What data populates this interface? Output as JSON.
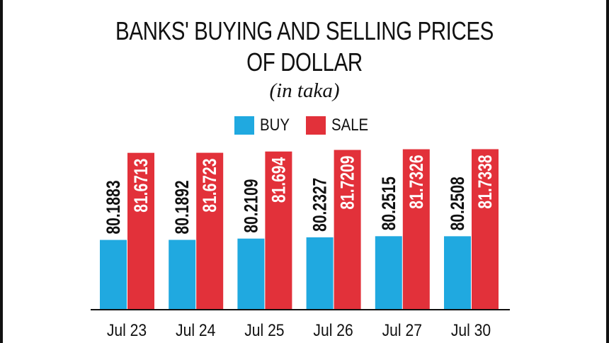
{
  "title_line1": "BANKS' BUYING AND SELLING PRICES",
  "title_line2": "OF DOLLAR",
  "subtitle": "(in taka)",
  "colors": {
    "buy": "#20a9e0",
    "sale": "#e2313a",
    "text": "#111111"
  },
  "legend": [
    {
      "label": "BUY",
      "color": "#20a9e0"
    },
    {
      "label": "SALE",
      "color": "#e2313a"
    }
  ],
  "chart_data": {
    "type": "bar",
    "categories": [
      "Jul 23",
      "Jul 24",
      "Jul 25",
      "Jul 26",
      "Jul 27",
      "Jul 30"
    ],
    "series": [
      {
        "name": "BUY",
        "values": [
          80.1883,
          80.1892,
          80.2109,
          80.2327,
          80.2515,
          80.2508
        ],
        "labels": [
          "80.1883",
          "80.1892",
          "80.2109",
          "80.2327",
          "80.2515",
          "80.2508"
        ]
      },
      {
        "name": "SALE",
        "values": [
          81.6713,
          81.6723,
          81.694,
          81.7209,
          81.7326,
          81.7338
        ],
        "labels": [
          "81.6713",
          "81.6723",
          "81.694",
          "81.7209",
          "81.7326",
          "81.7338"
        ]
      }
    ],
    "ylim": [
      79.0,
      81.8
    ],
    "legend_position": "top-center",
    "grid": false
  }
}
